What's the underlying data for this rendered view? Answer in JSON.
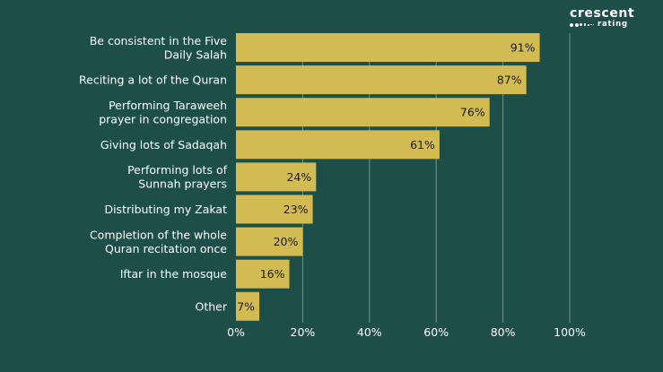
{
  "brand": {
    "line1": "crescent",
    "line2": "rating",
    "text_color": "#ffffff"
  },
  "colors": {
    "background": "#1d4f48",
    "bar": "#d1bb52",
    "grid": "#6f928b",
    "label": "#ffffff",
    "value_label": "#1a1a1a"
  },
  "chart_data": {
    "type": "bar",
    "orientation": "horizontal",
    "categories": [
      "Be consistent in the Five Daily Salah",
      "Reciting a lot of the Quran",
      "Performing Taraweeh prayer in congregation",
      "Giving lots of Sadaqah",
      "Performing lots of Sunnah prayers",
      "Distributing my Zakat",
      "Completion of the whole Quran recitation once",
      "Iftar in the mosque",
      "Other"
    ],
    "category_lines": [
      [
        "Be consistent in the Five",
        "Daily Salah"
      ],
      [
        "Reciting a lot of the Quran"
      ],
      [
        "Performing Taraweeh",
        "prayer in congregation"
      ],
      [
        "Giving lots of Sadaqah"
      ],
      [
        "Performing lots of",
        "Sunnah prayers"
      ],
      [
        "Distributing my Zakat"
      ],
      [
        "Completion of the whole",
        "Quran recitation once"
      ],
      [
        "Iftar in the mosque"
      ],
      [
        "Other"
      ]
    ],
    "values": [
      91,
      87,
      76,
      61,
      24,
      23,
      20,
      16,
      7
    ],
    "value_labels": [
      "91%",
      "87%",
      "76%",
      "61%",
      "24%",
      "23%",
      "20%",
      "16%",
      "7%"
    ],
    "x_ticks": [
      0,
      20,
      40,
      60,
      80,
      100
    ],
    "x_tick_labels": [
      "0%",
      "20%",
      "40%",
      "60%",
      "80%",
      "100%"
    ],
    "xlim": [
      0,
      100
    ],
    "title": "",
    "xlabel": "",
    "ylabel": "",
    "grid": true,
    "legend": "none"
  }
}
